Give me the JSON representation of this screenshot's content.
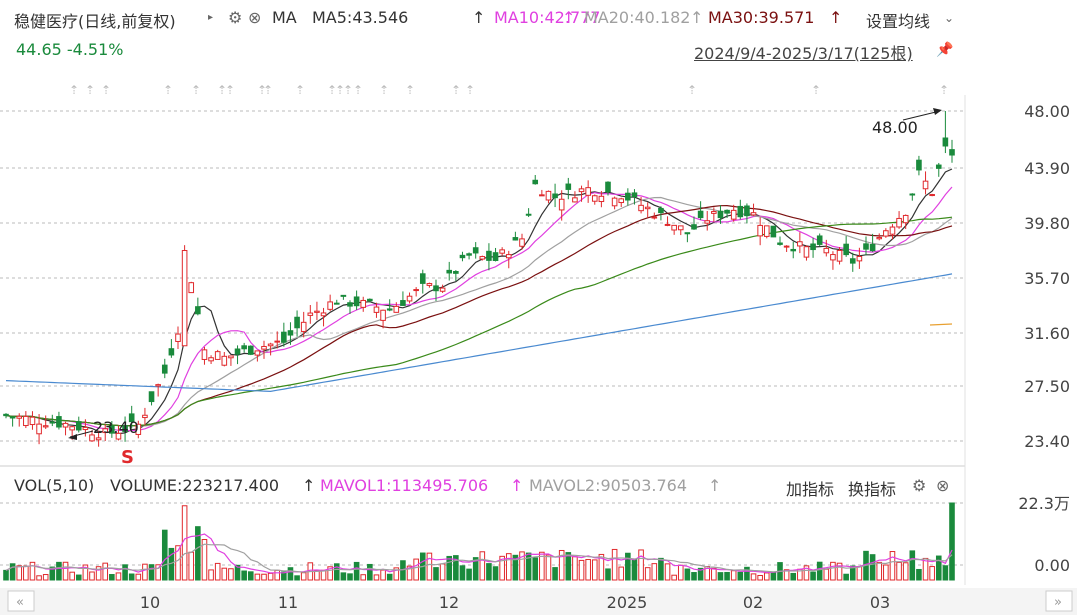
{
  "header": {
    "stock_name": "稳健医疗(日线,前复权)",
    "ma_label": "MA",
    "ma5": "MA5:43.546",
    "ma10": "MA10:42.777",
    "ma20": "MA20:40.182",
    "ma30": "MA30:39.571",
    "arrow": "↑",
    "settings_label": "设置均线",
    "price_change": "44.65 -4.51%",
    "date_range": "2024/9/4-2025/3/17(125根)"
  },
  "volume_header": {
    "vol_label": "VOL(5,10)",
    "volume": "VOLUME:223217.400",
    "mavol1": "MAVOL1:113495.706",
    "mavol2": "MAVOL2:90503.764",
    "arrow": "↑",
    "add_indicator": "加指标",
    "switch_indicator": "换指标"
  },
  "colors": {
    "up": "#e0292c",
    "down": "#1a8a3c",
    "ma5": "#333333",
    "ma10": "#e040e0",
    "ma20": "#a0a0a0",
    "ma30": "#7a1010",
    "ma60": "#3a8a1a",
    "ma120": "#4a8ad0"
  },
  "chart_data": {
    "type": "candlestick",
    "y_ticks": [
      "48.00",
      "43.90",
      "39.80",
      "35.70",
      "31.60",
      "27.50",
      "23.40"
    ],
    "vol_ticks": [
      "22.3万",
      "0.00"
    ],
    "x_labels": [
      "10",
      "11",
      "12",
      "2025",
      "02",
      "03"
    ],
    "annotations": {
      "high": "48.00",
      "low": "23.40"
    },
    "marker": "S"
  }
}
